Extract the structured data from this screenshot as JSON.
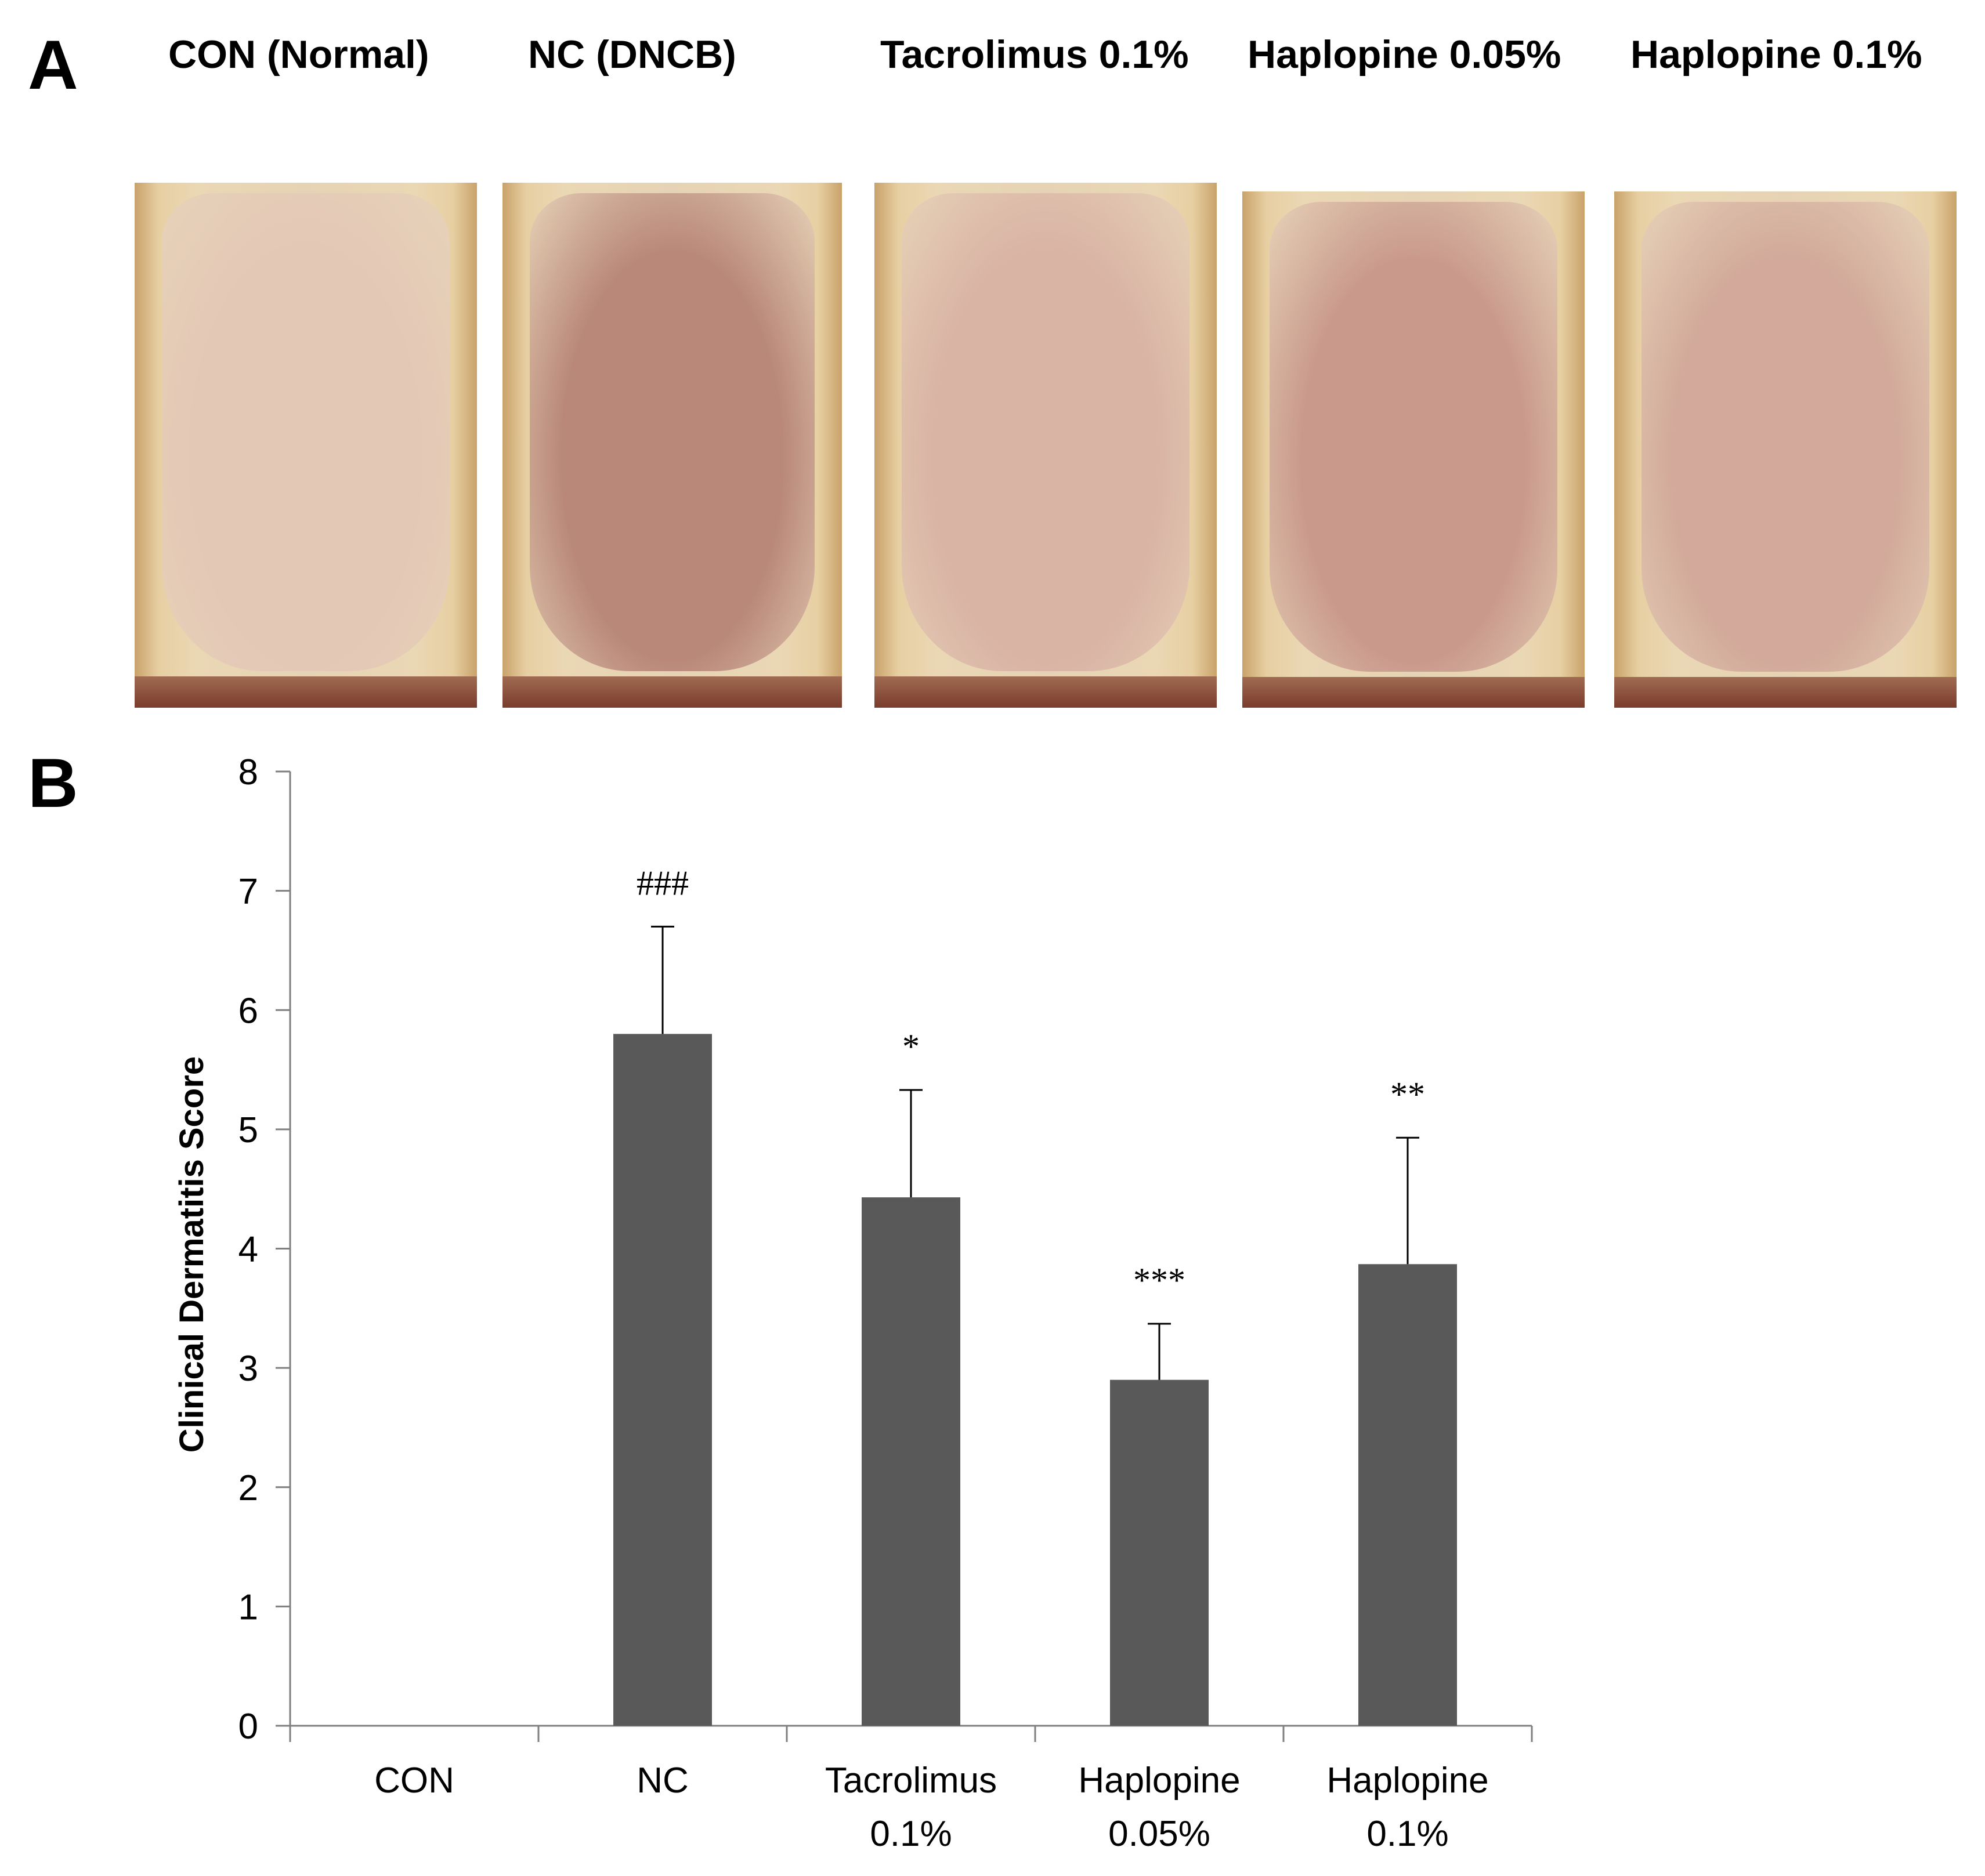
{
  "panels": {
    "a_label": "A",
    "b_label": "B"
  },
  "photo_labels": [
    "CON (Normal)",
    "NC (DNCB)",
    "Tacrolimus 0.1%",
    "Haplopine 0.05%",
    "Haplopine 0.1%"
  ],
  "colors": {
    "bar": "#595959",
    "axis": "#7f7f7f",
    "photo_skin": [
      "#e4c8b6",
      "#b98879",
      "#d9b3a4",
      "#c99a8c",
      "#d2a99a"
    ]
  },
  "chart_data": {
    "type": "bar",
    "ylabel": "Clinical Dermatitis Score",
    "xlabel": "",
    "ylim": [
      0,
      8
    ],
    "yticks": [
      0,
      1,
      2,
      3,
      4,
      5,
      6,
      7,
      8
    ],
    "categories": [
      [
        "CON"
      ],
      [
        "NC"
      ],
      [
        "Tacrolimus",
        "0.1%"
      ],
      [
        "Haplopine",
        "0.05%"
      ],
      [
        "Haplopine",
        "0.1%"
      ]
    ],
    "values": [
      0,
      5.8,
      4.43,
      2.9,
      3.87
    ],
    "error_upper": [
      0,
      6.7,
      5.33,
      3.37,
      4.93
    ],
    "annotations": [
      "",
      "###",
      "*",
      "***",
      "**"
    ],
    "grid": false,
    "legend": "none"
  }
}
